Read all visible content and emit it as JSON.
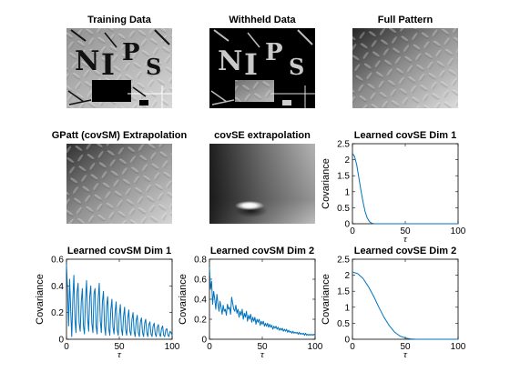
{
  "images": [
    {
      "title": "Training Data",
      "kind": "training"
    },
    {
      "title": "Withheld Data",
      "kind": "withheld"
    },
    {
      "title": "Full Pattern",
      "kind": "full"
    },
    {
      "title": "GPatt (covSM) Extrapolation",
      "kind": "gpatt"
    },
    {
      "title": "covSE extrapolation",
      "kind": "covse"
    }
  ],
  "nips_letters": [
    "N",
    "I",
    "P",
    "S"
  ],
  "colors": {
    "line": "#0072bd",
    "axes": "#000000",
    "background": "#ffffff"
  },
  "chart_data": [
    {
      "type": "line",
      "title": "Learned covSE Dim 1",
      "xlabel": "τ",
      "ylabel": "Covariance",
      "xlim": [
        0,
        100
      ],
      "ylim": [
        0,
        2.5
      ],
      "xticks": [
        "0",
        "50",
        "100"
      ],
      "yticks": [
        "0",
        "0.5",
        "1",
        "1.5",
        "2",
        "2.5"
      ],
      "grid": false,
      "series": [
        {
          "x": [
            0,
            2,
            4,
            6,
            8,
            10,
            12,
            14,
            16,
            18,
            20,
            25,
            30,
            40,
            50,
            60,
            70,
            80,
            90,
            100
          ],
          "y": [
            2.2,
            2.1,
            1.85,
            1.45,
            1.05,
            0.68,
            0.38,
            0.18,
            0.07,
            0.02,
            0.005,
            0,
            0,
            0,
            0,
            0,
            0,
            0,
            0,
            0
          ]
        }
      ]
    },
    {
      "type": "line",
      "title": "Learned covSM Dim 1",
      "xlabel": "τ",
      "ylabel": "Covariance",
      "xlim": [
        0,
        100
      ],
      "ylim": [
        0,
        0.6
      ],
      "xticks": [
        "0",
        "50",
        "100"
      ],
      "yticks": [
        "0",
        "0.2",
        "0.4",
        "0.6"
      ],
      "grid": false,
      "series": [
        {
          "x": [
            0,
            1,
            2,
            3,
            4,
            5,
            6,
            7,
            8,
            9,
            10,
            11,
            12,
            13,
            14,
            15,
            16,
            17,
            18,
            19,
            20,
            21,
            22,
            23,
            24,
            25,
            26,
            27,
            28,
            29,
            30,
            31,
            32,
            33,
            34,
            35,
            36,
            37,
            38,
            39,
            40,
            41,
            42,
            43,
            44,
            45,
            46,
            47,
            48,
            49,
            50,
            51,
            52,
            53,
            54,
            55,
            56,
            57,
            58,
            59,
            60,
            61,
            62,
            63,
            64,
            65,
            66,
            67,
            68,
            69,
            70,
            71,
            72,
            73,
            74,
            75,
            76,
            77,
            78,
            79,
            80,
            81,
            82,
            83,
            84,
            85,
            86,
            87,
            88,
            89,
            90,
            91,
            92,
            93,
            94,
            95,
            96,
            97,
            98,
            99,
            100
          ],
          "y": [
            0.56,
            0.38,
            0.1,
            0.45,
            0.22,
            0.02,
            0.3,
            0.48,
            0.15,
            0.05,
            0.35,
            0.42,
            0.12,
            0.06,
            0.28,
            0.38,
            0.1,
            0.04,
            0.3,
            0.44,
            0.16,
            0.06,
            0.32,
            0.4,
            0.12,
            0.05,
            0.34,
            0.38,
            0.1,
            0.04,
            0.3,
            0.42,
            0.14,
            0.05,
            0.28,
            0.36,
            0.1,
            0.03,
            0.25,
            0.32,
            0.08,
            0.03,
            0.22,
            0.3,
            0.09,
            0.04,
            0.2,
            0.28,
            0.07,
            0.03,
            0.18,
            0.26,
            0.08,
            0.03,
            0.17,
            0.24,
            0.07,
            0.03,
            0.16,
            0.22,
            0.06,
            0.03,
            0.15,
            0.2,
            0.06,
            0.02,
            0.14,
            0.18,
            0.05,
            0.02,
            0.13,
            0.16,
            0.05,
            0.02,
            0.12,
            0.15,
            0.05,
            0.02,
            0.11,
            0.13,
            0.04,
            0.02,
            0.1,
            0.12,
            0.04,
            0.02,
            0.09,
            0.11,
            0.04,
            0.02,
            0.08,
            0.1,
            0.03,
            0.02,
            0.07,
            0.08,
            0.03,
            0.02,
            0.06,
            0.05,
            0.03
          ]
        }
      ]
    },
    {
      "type": "line",
      "title": "Learned covSM Dim 2",
      "xlabel": "τ",
      "ylabel": "Covariance",
      "xlim": [
        0,
        100
      ],
      "ylim": [
        0,
        0.8
      ],
      "xticks": [
        "0",
        "50",
        "100"
      ],
      "yticks": [
        "0",
        "0.2",
        "0.4",
        "0.6",
        "0.8"
      ],
      "grid": false,
      "series": [
        {
          "x": [
            0,
            1,
            2,
            3,
            4,
            5,
            6,
            7,
            8,
            9,
            10,
            11,
            12,
            13,
            14,
            15,
            16,
            17,
            18,
            19,
            20,
            21,
            22,
            23,
            24,
            25,
            26,
            27,
            28,
            29,
            30,
            31,
            32,
            33,
            34,
            35,
            36,
            37,
            38,
            39,
            40,
            41,
            42,
            43,
            44,
            45,
            46,
            47,
            48,
            49,
            50,
            51,
            52,
            53,
            54,
            55,
            56,
            57,
            58,
            59,
            60,
            61,
            62,
            63,
            64,
            65,
            66,
            67,
            68,
            69,
            70,
            71,
            72,
            73,
            74,
            75,
            76,
            77,
            78,
            79,
            80,
            81,
            82,
            83,
            84,
            85,
            86,
            87,
            88,
            89,
            90,
            91,
            92,
            93,
            94,
            95,
            96,
            97,
            98,
            99,
            100
          ],
          "y": [
            0.72,
            0.5,
            0.58,
            0.35,
            0.48,
            0.4,
            0.3,
            0.45,
            0.36,
            0.28,
            0.38,
            0.32,
            0.25,
            0.34,
            0.28,
            0.3,
            0.24,
            0.35,
            0.3,
            0.32,
            0.25,
            0.42,
            0.36,
            0.3,
            0.28,
            0.34,
            0.26,
            0.3,
            0.22,
            0.28,
            0.24,
            0.3,
            0.2,
            0.26,
            0.22,
            0.28,
            0.18,
            0.24,
            0.2,
            0.25,
            0.17,
            0.22,
            0.18,
            0.22,
            0.15,
            0.2,
            0.17,
            0.2,
            0.14,
            0.18,
            0.15,
            0.18,
            0.13,
            0.16,
            0.13,
            0.16,
            0.12,
            0.15,
            0.12,
            0.14,
            0.1,
            0.13,
            0.11,
            0.13,
            0.1,
            0.12,
            0.09,
            0.11,
            0.09,
            0.11,
            0.08,
            0.1,
            0.08,
            0.1,
            0.07,
            0.09,
            0.07,
            0.08,
            0.06,
            0.08,
            0.06,
            0.07,
            0.06,
            0.07,
            0.05,
            0.07,
            0.05,
            0.06,
            0.05,
            0.06,
            0.04,
            0.06,
            0.04,
            0.05,
            0.04,
            0.05,
            0.04,
            0.05,
            0.04,
            0.05,
            0.04
          ]
        }
      ]
    },
    {
      "type": "line",
      "title": "Learned covSE Dim 2",
      "xlabel": "τ",
      "ylabel": "Covariance",
      "xlim": [
        0,
        100
      ],
      "ylim": [
        0,
        2.5
      ],
      "xticks": [
        "0",
        "50",
        "100"
      ],
      "yticks": [
        "0",
        "0.5",
        "1",
        "1.5",
        "2",
        "2.5"
      ],
      "grid": false,
      "series": [
        {
          "x": [
            0,
            5,
            10,
            15,
            20,
            25,
            30,
            35,
            40,
            45,
            50,
            55,
            60,
            70,
            80,
            90,
            100
          ],
          "y": [
            2.1,
            2.05,
            1.9,
            1.65,
            1.35,
            1.0,
            0.68,
            0.42,
            0.22,
            0.1,
            0.04,
            0.01,
            0,
            0,
            0,
            0,
            0
          ]
        }
      ]
    }
  ]
}
